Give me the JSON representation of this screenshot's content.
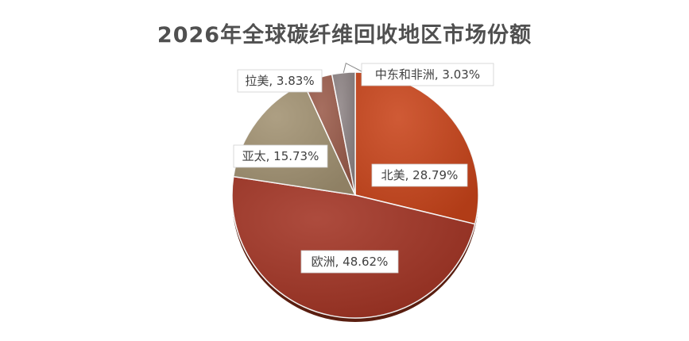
{
  "chart_data": {
    "type": "pie",
    "title": "2026年全球碳纤维回收地区市场份额",
    "slices": [
      {
        "label": "北美",
        "value": 28.79,
        "display": "北美, 28.79%",
        "color": "#C9441A"
      },
      {
        "label": "欧洲",
        "value": 48.62,
        "display": "欧洲, 48.62%",
        "color": "#A23323"
      },
      {
        "label": "亚太",
        "value": 15.73,
        "display": "亚太, 15.73%",
        "color": "#A29272"
      },
      {
        "label": "拉美",
        "value": 3.83,
        "display": "拉美, 3.83%",
        "color": "#9A5B4A"
      },
      {
        "label": "中东和非洲",
        "value": 3.03,
        "display": "中东和非洲, 3.03%",
        "color": "#8E8485"
      }
    ],
    "start_angle_deg": 0,
    "direction": "clockwise",
    "legend": "none"
  }
}
